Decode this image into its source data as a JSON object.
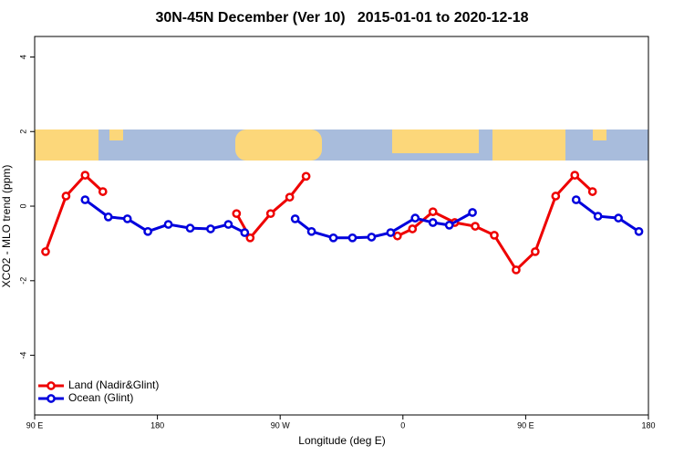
{
  "chart_data": {
    "type": "line",
    "title": "30N-45N December (Ver 10)   2015-01-01 to 2020-12-18",
    "x_label": "Longitude (deg E)",
    "y_label": "XCO2 - MLO trend (ppm)",
    "xlim": [
      90,
      540
    ],
    "xticks": [
      {
        "value": 90,
        "label": "90 E"
      },
      180,
      {
        "value": 270,
        "label": "90 W"
      },
      {
        "value": 360,
        "label": "0"
      },
      {
        "value": 450,
        "label": "90 E"
      },
      {
        "value": 540,
        "label": "180"
      }
    ],
    "ylim": [
      -5.6,
      4.55
    ],
    "yticks": [
      -4,
      -2,
      0,
      2,
      4
    ],
    "legend": "bottom-left",
    "series": [
      {
        "name": "Land (Nadir&Glint)",
        "color": "#ee0000",
        "x": [
          98,
          113,
          127,
          140,
          null,
          238,
          248,
          263,
          277,
          289,
          null,
          356,
          367,
          382,
          398,
          413,
          427,
          443,
          457,
          472,
          486,
          499
        ],
        "values": [
          -1.22,
          0.27,
          0.83,
          0.39,
          null,
          -0.2,
          -0.85,
          -0.2,
          0.24,
          0.8,
          null,
          -0.8,
          -0.61,
          -0.15,
          -0.44,
          -0.54,
          -0.78,
          -1.71,
          -1.22,
          0.27,
          0.83,
          0.39
        ]
      },
      {
        "name": "Ocean (Glint)",
        "color": "#0000dd",
        "x": [
          127,
          144,
          158,
          173,
          188,
          204,
          219,
          232,
          244,
          null,
          281,
          293,
          309,
          323,
          337,
          351,
          369,
          382,
          394,
          411,
          null,
          487,
          503,
          518,
          533
        ],
        "values": [
          0.17,
          -0.29,
          -0.34,
          -0.68,
          -0.49,
          -0.59,
          -0.61,
          -0.49,
          -0.71,
          null,
          -0.34,
          -0.68,
          -0.85,
          -0.85,
          -0.83,
          -0.71,
          -0.32,
          -0.44,
          -0.51,
          -0.17,
          null,
          0.17,
          -0.27,
          -0.32,
          -0.68
        ]
      }
    ]
  }
}
